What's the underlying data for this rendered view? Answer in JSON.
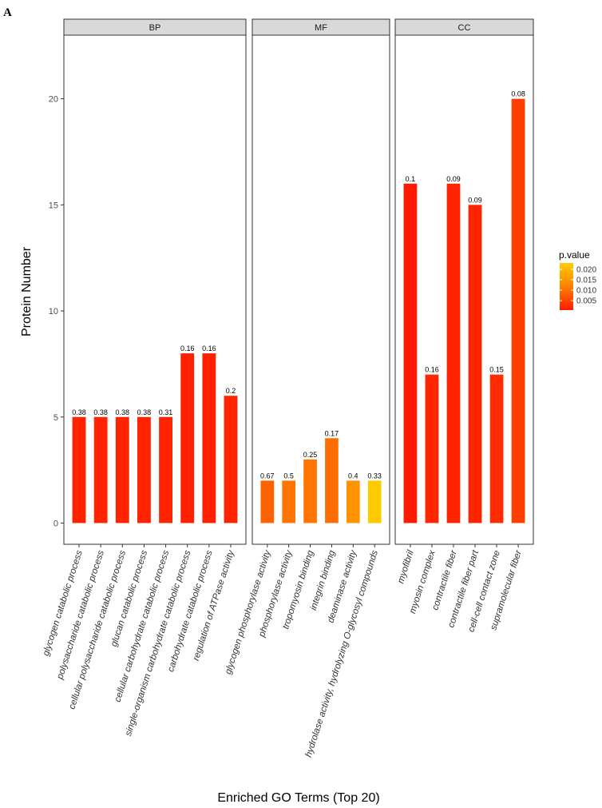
{
  "panel_label": "A",
  "chart_data": {
    "type": "bar",
    "title": "",
    "xlabel": "Enriched GO Terms (Top 20)",
    "ylabel": "Protein Number",
    "ylim": [
      -1,
      23
    ],
    "yticks": [
      0,
      5,
      10,
      15,
      20
    ],
    "grid": false,
    "facets": [
      {
        "name": "BP",
        "categories": [
          "glycogen catabolic process",
          "polysaccharide catabolic process",
          "cellular polysaccharide catabolic process",
          "glucan catabolic process",
          "cellular carbohydrate catabolic process",
          "single-organism carbohydrate catabolic process",
          "carbohydrate catabolic process",
          "regulation of ATPase activity"
        ],
        "values": [
          5,
          5,
          5,
          5,
          5,
          8,
          8,
          6
        ],
        "bar_labels": [
          "0.38",
          "0.38",
          "0.38",
          "0.38",
          "0.31",
          "0.16",
          "0.16",
          "0.2"
        ],
        "p_values": [
          0.0015,
          0.0015,
          0.0015,
          0.0015,
          0.0015,
          0.0012,
          0.0012,
          0.0015
        ]
      },
      {
        "name": "MF",
        "categories": [
          "glycogen phosphorylase activity",
          "phosphorylase activity",
          "tropomyosin binding",
          "integrin binding",
          "deaminase activity",
          "hydrolase activity, hydrolyzing O-glycosyl compounds"
        ],
        "values": [
          2,
          2,
          3,
          4,
          2,
          2
        ],
        "bar_labels": [
          "0.67",
          "0.5",
          "0.25",
          "0.17",
          "0.4",
          "0.33"
        ],
        "p_values": [
          0.0085,
          0.0105,
          0.0105,
          0.0095,
          0.0145,
          0.0225
        ]
      },
      {
        "name": "CC",
        "categories": [
          "myofibril",
          "myosin complex",
          "contractile fiber",
          "contractile fiber part",
          "cell-cell contact zone",
          "supramolecular fiber"
        ],
        "values": [
          16,
          7,
          16,
          15,
          7,
          20
        ],
        "bar_labels": [
          "0.1",
          "0.16",
          "0.09",
          "0.09",
          "0.15",
          "0.08"
        ],
        "p_values": [
          0.0005,
          0.0018,
          0.0015,
          0.0016,
          0.0025,
          0.0045
        ]
      }
    ],
    "legend": {
      "title": "p.value",
      "ticks": [
        0.005,
        0.01,
        0.015,
        0.02
      ],
      "tick_labels": [
        "0.005",
        "0.010",
        "0.015",
        "0.020"
      ],
      "range": [
        0.0005,
        0.023
      ],
      "colors": {
        "low": "#ff1a00",
        "mid": "#ff8000",
        "high": "#ffcc00"
      },
      "placement": "right"
    }
  },
  "colors": {
    "strip_fill": "#d9d9d9",
    "panel_border": "#333333",
    "background": "#ffffff"
  }
}
